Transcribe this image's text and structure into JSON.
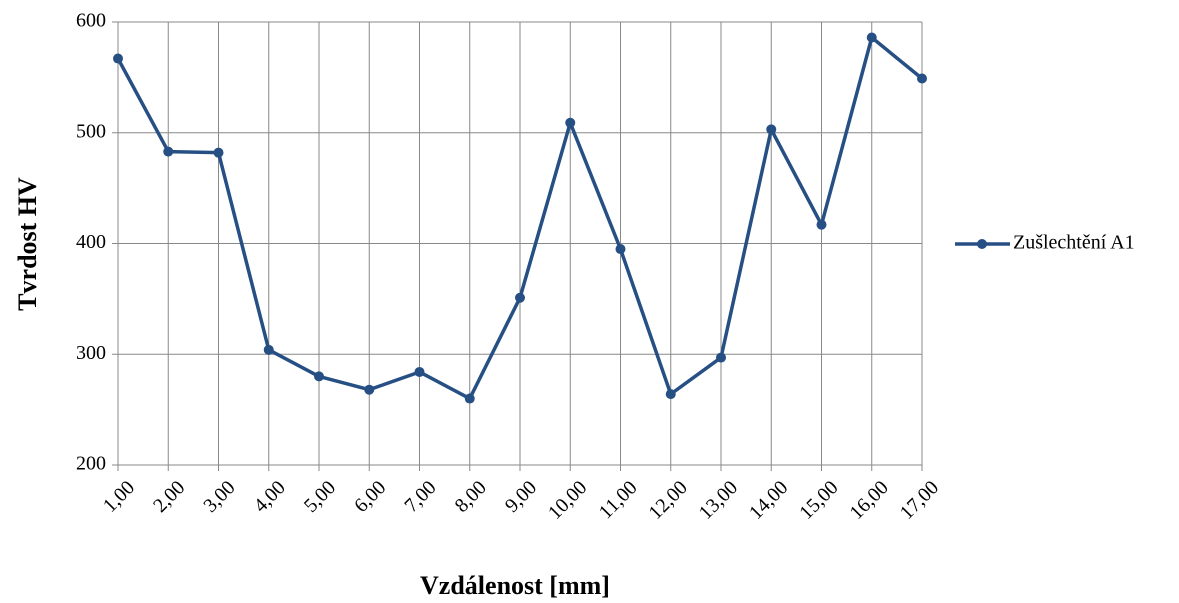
{
  "chart_data": {
    "type": "line",
    "x_label": "Vzdálenost [mm]",
    "y_label": "Tvrdost HV",
    "categories": [
      "1,00",
      "2,00",
      "3,00",
      "4,00",
      "5,00",
      "6,00",
      "7,00",
      "8,00",
      "9,00",
      "10,00",
      "11,00",
      "12,00",
      "13,00",
      "14,00",
      "15,00",
      "16,00",
      "17,00"
    ],
    "series": [
      {
        "name": "Zušlechtění A1",
        "color": "#264f84",
        "values": [
          567,
          483,
          482,
          304,
          280,
          268,
          284,
          260,
          351,
          509,
          395,
          264,
          297,
          503,
          417,
          586,
          549
        ]
      }
    ],
    "ylim": [
      200,
      600
    ],
    "yticks": [
      200,
      300,
      400,
      500,
      600
    ],
    "grid": true,
    "legend": "right"
  }
}
